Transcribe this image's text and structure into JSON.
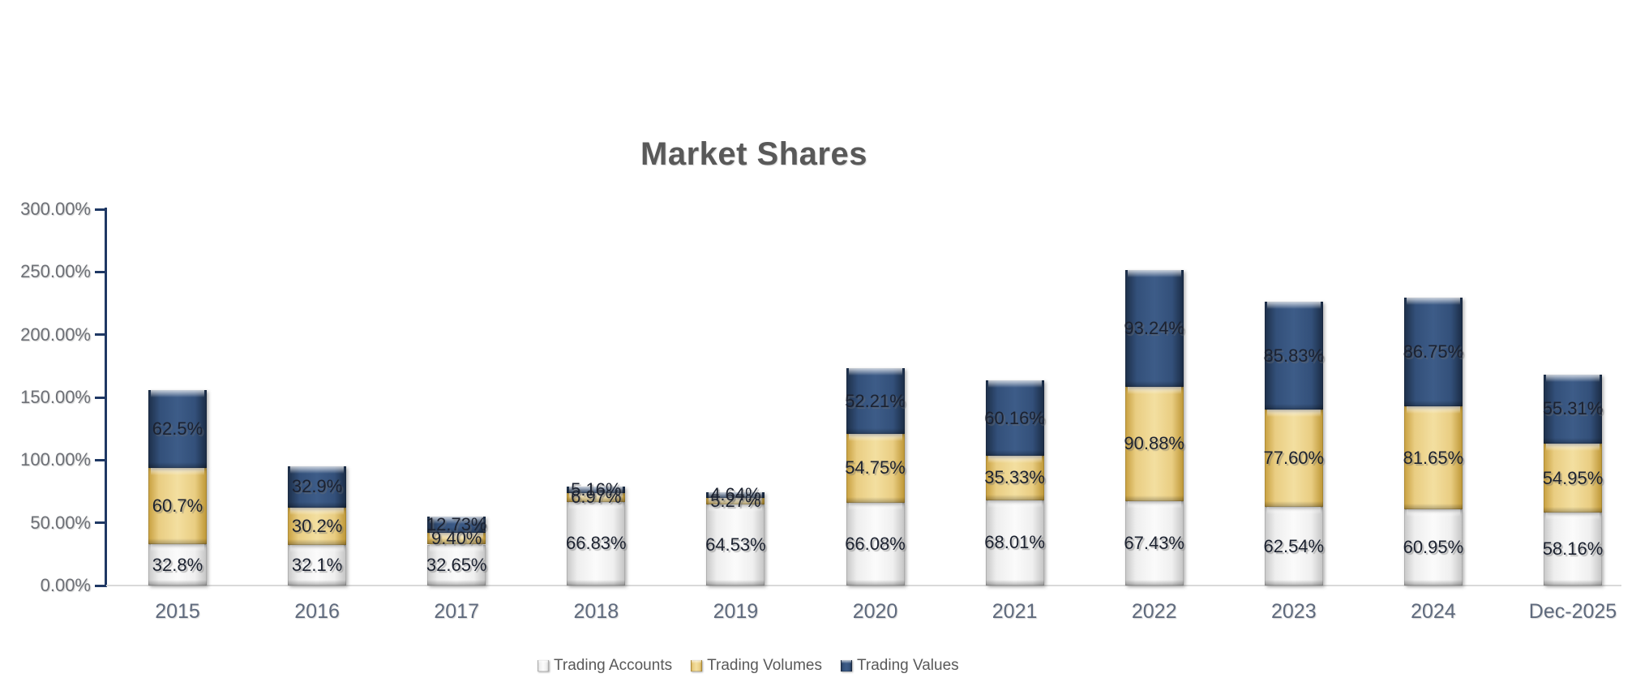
{
  "chart_data": {
    "type": "bar",
    "stacked": true,
    "title": "Market Shares",
    "xlabel": "",
    "ylabel": "",
    "grid": false,
    "categories": [
      "2015",
      "2016",
      "2017",
      "2018",
      "2019",
      "2020",
      "2021",
      "2022",
      "2023",
      "2024",
      "Dec-2025"
    ],
    "series": [
      {
        "name": "Trading Accounts",
        "color": "#e8e8e8",
        "values": [
          32.8,
          32.1,
          32.65,
          66.83,
          64.53,
          66.08,
          68.01,
          67.43,
          62.54,
          60.95,
          58.16
        ],
        "labels": [
          "32.8%",
          "32.1%",
          "32.65%",
          "66.83%",
          "64.53%",
          "66.08%",
          "68.01%",
          "67.43%",
          "62.54%",
          "60.95%",
          "58.16%"
        ]
      },
      {
        "name": "Trading Volumes",
        "color": "#e5c36c",
        "values": [
          60.7,
          30.2,
          9.4,
          6.97,
          5.27,
          54.75,
          35.33,
          90.88,
          77.6,
          81.65,
          54.95
        ],
        "labels": [
          "60.7%",
          "30.2%",
          "9.40%",
          "6.97%",
          "5.27%",
          "54.75%",
          "35.33%",
          "90.88%",
          "77.60%",
          "81.65%",
          "54.95%"
        ]
      },
      {
        "name": "Trading Values",
        "color": "#2e486b",
        "values": [
          62.5,
          32.9,
          12.73,
          5.16,
          4.64,
          52.21,
          60.16,
          93.24,
          85.83,
          86.75,
          55.31
        ],
        "labels": [
          "62.5%",
          "32.9%",
          "12.73%",
          "5.16%",
          "4.64%",
          "52.21%",
          "60.16%",
          "93.24%",
          "85.83%",
          "86.75%",
          "55.31%"
        ]
      }
    ],
    "y_axis": {
      "min": 0,
      "max": 300,
      "step": 50,
      "tick_labels": [
        "0.00%",
        "50.00%",
        "100.00%",
        "150.00%",
        "200.00%",
        "250.00%",
        "300.00%"
      ]
    },
    "legend": {
      "position": "bottom",
      "entries": [
        "Trading Accounts",
        "Trading Volumes",
        "Trading Values"
      ]
    }
  },
  "colors": {
    "axis": "#1f3864",
    "baseline": "#d9d9d9",
    "title_text": "#595959",
    "y_label_text": "#6d7076",
    "x_label_text": "#5f6a7d",
    "legend_text": "#595959",
    "data_label_text": "#1c2230"
  }
}
